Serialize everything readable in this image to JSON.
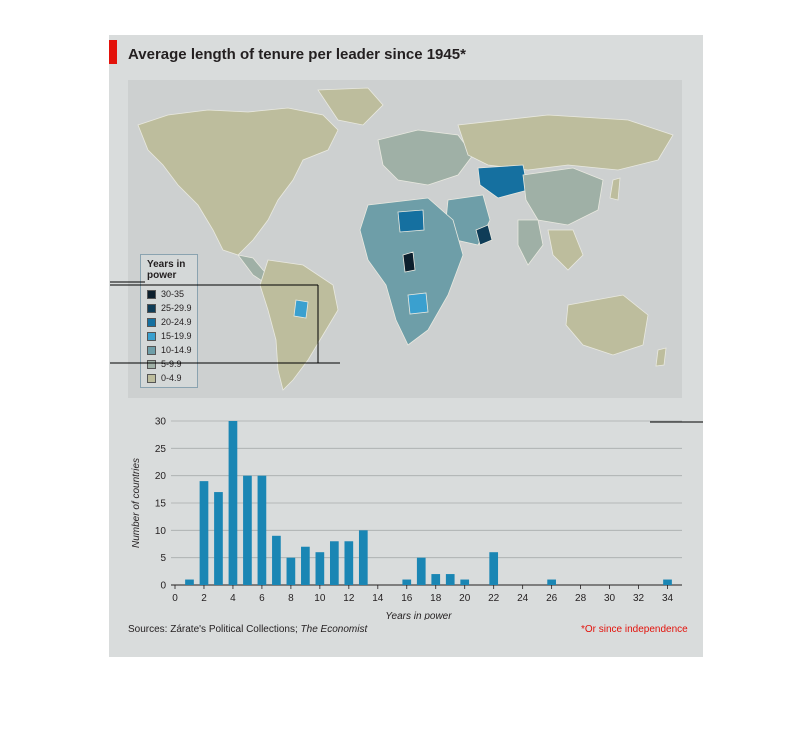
{
  "title": "Average length of tenure per leader since 1945*",
  "legend": {
    "title_line1": "Years in",
    "title_line2": "power",
    "items": [
      {
        "label": "30-35",
        "color": "#0c1f2d"
      },
      {
        "label": "25-29.9",
        "color": "#0f3d58"
      },
      {
        "label": "20-24.9",
        "color": "#1570a0"
      },
      {
        "label": "15-19.9",
        "color": "#3aa0cf"
      },
      {
        "label": "10-14.9",
        "color": "#6e9ea8"
      },
      {
        "label": "5-9.9",
        "color": "#9fb0a6"
      },
      {
        "label": "0-4.9",
        "color": "#bdbd9d"
      }
    ]
  },
  "chart_data": {
    "type": "bar",
    "x": [
      1,
      2,
      3,
      4,
      5,
      6,
      7,
      8,
      9,
      10,
      11,
      12,
      13,
      16,
      17,
      18,
      19,
      20,
      22,
      26,
      34
    ],
    "values": [
      1,
      19,
      17,
      30,
      20,
      20,
      9,
      5,
      7,
      6,
      8,
      8,
      10,
      1,
      5,
      2,
      2,
      1,
      6,
      1,
      1
    ],
    "xlabel": "Years in power",
    "ylabel": "Number of countries",
    "xlim": [
      0,
      35
    ],
    "ylim": [
      0,
      30
    ],
    "xticks": [
      "0",
      "2",
      "4",
      "6",
      "8",
      "10",
      "12",
      "14",
      "16",
      "18",
      "20",
      "22",
      "24",
      "26",
      "28",
      "30",
      "32",
      "34"
    ],
    "yticks": [
      "0",
      "5",
      "10",
      "15",
      "20",
      "25",
      "30"
    ],
    "bar_color": "#1a86b4",
    "grid": true
  },
  "footer": {
    "sources_prefix": "Sources: Zárate's Political Collections; ",
    "sources_italic": "The Economist",
    "note": "*Or since independence"
  }
}
